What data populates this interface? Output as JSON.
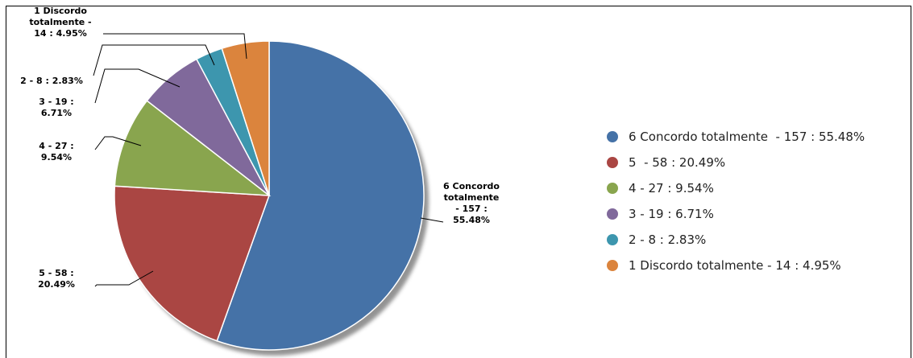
{
  "chart_data": {
    "type": "pie",
    "start_angle_deg": 0,
    "direction": "clockwise",
    "slices": [
      {
        "label": "6 Concordo totalmente",
        "count": 157,
        "percent": 55.48,
        "callout": [
          "6 Concordo",
          "totalmente",
          "- 157 :",
          "55.48%"
        ],
        "legend": "6 Concordo totalmente  - 157 : 55.48%",
        "color": "#4572A7"
      },
      {
        "label": "5",
        "count": 58,
        "percent": 20.49,
        "callout": [
          "5  - 58 :",
          "20.49%"
        ],
        "legend": "5  - 58 : 20.49%",
        "color": "#AA4643"
      },
      {
        "label": "4",
        "count": 27,
        "percent": 9.54,
        "callout": [
          "4 - 27 :",
          "9.54%"
        ],
        "legend": "4 - 27 : 9.54%",
        "color": "#89A54E"
      },
      {
        "label": "3",
        "count": 19,
        "percent": 6.71,
        "callout": [
          "3 - 19 :",
          "6.71%"
        ],
        "legend": "3 - 19 : 6.71%",
        "color": "#80699B"
      },
      {
        "label": "2",
        "count": 8,
        "percent": 2.83,
        "callout": [
          "2 - 8 : 2.83%"
        ],
        "legend": "2 - 8 : 2.83%",
        "color": "#3D96AE"
      },
      {
        "label": "1 Discordo totalmente",
        "count": 14,
        "percent": 4.95,
        "callout": [
          "1 Discordo",
          "totalmente -",
          "14 : 4.95%"
        ],
        "legend": "1 Discordo totalmente - 14 : 4.95%",
        "color": "#DB843D"
      }
    ],
    "legend_position": "right"
  }
}
